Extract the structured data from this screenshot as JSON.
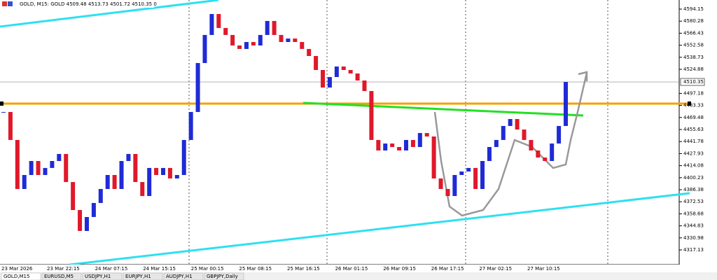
{
  "chart_data": {
    "type": "candlestick",
    "title": "GOLD, M15: GOLD 4509.48 4513.73 4501.72 4510.35 0",
    "close": [
      4475.8,
      4443.6,
      4387.2,
      4403.3,
      4419.4,
      4403.3,
      4411.4,
      4419.4,
      4427.5,
      4395.2,
      4363.0,
      4338.9,
      4355.0,
      4371.1,
      4387.2,
      4403.3,
      4387.2,
      4419.4,
      4427.5,
      4395.2,
      4379.1,
      4411.4,
      4403.3,
      4411.4,
      4399.3,
      4403.3,
      4443.6,
      4475.8,
      4532.1,
      4564.4,
      4588.5,
      4572.4,
      4564.4,
      4552.3,
      4548.3,
      4556.3,
      4552.3,
      4564.4,
      4580.5,
      4564.4,
      4556.3,
      4560.3,
      4556.3,
      4548.3,
      4540.2,
      4524.1,
      4503.9,
      4516.0,
      4528.1,
      4524.1,
      4520.1,
      4512.0,
      4499.9,
      4443.6,
      4431.5,
      4439.5,
      4435.5,
      4431.5,
      4443.6,
      4435.5,
      4451.6,
      4447.6,
      4399.3,
      4387.2,
      4379.1,
      4403.3,
      4407.3,
      4411.4,
      4387.2,
      4419.4,
      4435.5,
      4443.6,
      4459.7,
      4467.7,
      4455.6,
      4443.6,
      4431.5,
      4423.4,
      4419.4,
      4439.5,
      4459.7,
      4510.35
    ],
    "up_color": "#1f2bd6",
    "down_color": "#e0182a",
    "x_labels": [
      "23 Mar 2026",
      "23 Mar 22:15",
      "24 Mar 07:15",
      "24 Mar 15:15",
      "25 Mar 00:15",
      "25 Mar 08:15",
      "25 Mar 16:15",
      "26 Mar 01:15",
      "26 Mar 09:15",
      "26 Mar 17:15",
      "27 Mar 02:15",
      "27 Mar 10:15"
    ],
    "ylim": [
      4300.22,
      4604.62
    ],
    "yticks": [
      4594.15,
      4580.28,
      4566.43,
      4552.58,
      4538.73,
      4524.88,
      4497.18,
      4483.33,
      4469.48,
      4455.63,
      4441.78,
      4427.93,
      4414.08,
      4400.23,
      4386.38,
      4372.53,
      4358.68,
      4344.83,
      4330.98,
      4317.13
    ],
    "current_price": 4510.35,
    "tabs": [
      "GOLD,M15",
      "EURUSD,M5",
      "USDJPY,H1",
      "EURJPY,H1",
      "AUDJPY,H1",
      "GBPJPY,Daily"
    ]
  }
}
